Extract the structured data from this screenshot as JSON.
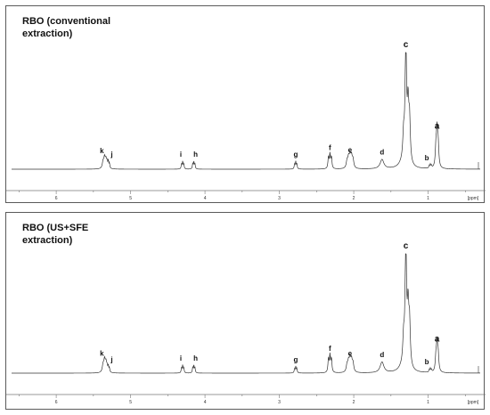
{
  "chart_data": [
    {
      "type": "line",
      "title": "RBO (conventional\nextraction)",
      "xlabel": "[ppm]",
      "x_reversed": true,
      "xlim": [
        6.6,
        0.3
      ],
      "x_ticks": [
        6,
        5,
        4,
        3,
        2,
        1
      ],
      "peaks": [
        {
          "label": "k",
          "ppm": 5.35,
          "height": 0.09
        },
        {
          "label": "j",
          "ppm": 5.3,
          "height": 0.06
        },
        {
          "label": "i",
          "ppm": 4.3,
          "height": 0.06
        },
        {
          "label": "h",
          "ppm": 4.15,
          "height": 0.06
        },
        {
          "label": "g",
          "ppm": 2.78,
          "height": 0.06
        },
        {
          "label": "f",
          "ppm": 2.32,
          "height": 0.12
        },
        {
          "label": "e",
          "ppm": 2.05,
          "height": 0.1
        },
        {
          "label": "d",
          "ppm": 1.62,
          "height": 0.08
        },
        {
          "label": "c",
          "ppm": 1.3,
          "height": 1.0
        },
        {
          "label": "b",
          "ppm": 0.97,
          "height": 0.03
        },
        {
          "label": "a",
          "ppm": 0.88,
          "height": 0.3
        }
      ]
    },
    {
      "type": "line",
      "title": "RBO (US+SFE\nextraction)",
      "xlabel": "[ppm]",
      "x_reversed": true,
      "xlim": [
        6.6,
        0.3
      ],
      "x_ticks": [
        6,
        5,
        4,
        3,
        2,
        1
      ],
      "peaks": [
        {
          "label": "k",
          "ppm": 5.35,
          "height": 0.1
        },
        {
          "label": "j",
          "ppm": 5.3,
          "height": 0.05
        },
        {
          "label": "i",
          "ppm": 4.3,
          "height": 0.06
        },
        {
          "label": "h",
          "ppm": 4.15,
          "height": 0.06
        },
        {
          "label": "g",
          "ppm": 2.78,
          "height": 0.05
        },
        {
          "label": "f",
          "ppm": 2.32,
          "height": 0.14
        },
        {
          "label": "e",
          "ppm": 2.05,
          "height": 0.1
        },
        {
          "label": "d",
          "ppm": 1.62,
          "height": 0.09
        },
        {
          "label": "c",
          "ppm": 1.3,
          "height": 1.0
        },
        {
          "label": "b",
          "ppm": 0.97,
          "height": 0.03
        },
        {
          "label": "a",
          "ppm": 0.88,
          "height": 0.22
        }
      ]
    }
  ]
}
